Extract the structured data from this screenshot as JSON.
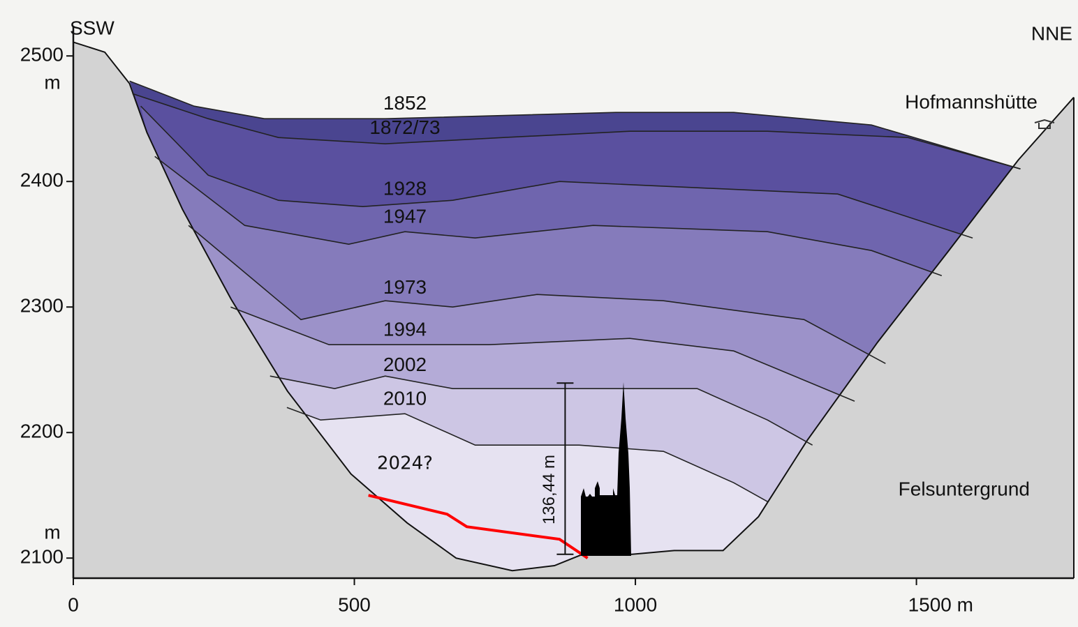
{
  "chart_data": {
    "type": "line",
    "left_label": "SSW",
    "right_label": "NNE",
    "hut_label": "Hofmannshütte",
    "rock_label": "Felsuntergrund",
    "y_unit_top": "m",
    "y_unit_bottom": "m",
    "xlim": [
      0,
      1780
    ],
    "ylim": [
      2084,
      2524
    ],
    "xticks": [
      0,
      500,
      1000,
      {
        "value": 1500,
        "label": "1500 m"
      }
    ],
    "yticks": [
      2100,
      2200,
      2300,
      2400,
      2500
    ],
    "bedrock": {
      "x": [
        0,
        56,
        100,
        131,
        194,
        281,
        381,
        494,
        594,
        681,
        781,
        856,
        906,
        994,
        1069,
        1156,
        1219,
        1306,
        1431,
        1556,
        1681,
        1780
      ],
      "values": [
        2511,
        2503,
        2478,
        2439,
        2378,
        2306,
        2233,
        2167,
        2128,
        2100,
        2090,
        2094,
        2103,
        2103,
        2106,
        2106,
        2133,
        2194,
        2272,
        2344,
        2417,
        2467
      ]
    },
    "series": [
      {
        "name": "1852",
        "color": "#4a4590",
        "x": [
          100,
          215,
          340,
          555,
          965,
          1175,
          1420,
          1685
        ],
        "values": [
          2480,
          2460,
          2450,
          2450,
          2455,
          2455,
          2445,
          2410
        ]
      },
      {
        "name": "1872/73",
        "color": "#5a509f",
        "x": [
          105,
          240,
          365,
          555,
          765,
          990,
          1235,
          1485,
          1685
        ],
        "values": [
          2470,
          2450,
          2435,
          2430,
          2435,
          2440,
          2440,
          2435,
          2410
        ]
      },
      {
        "name": "1928",
        "color": "#6f65ae",
        "x": [
          120,
          240,
          365,
          515,
          675,
          865,
          1110,
          1360,
          1600
        ],
        "values": [
          2460,
          2405,
          2385,
          2380,
          2385,
          2400,
          2395,
          2390,
          2355
        ]
      },
      {
        "name": "1947",
        "color": "#857bbb",
        "x": [
          145,
          305,
          490,
          590,
          715,
          925,
          1235,
          1420,
          1545
        ],
        "values": [
          2420,
          2365,
          2350,
          2360,
          2355,
          2365,
          2360,
          2345,
          2325
        ]
      },
      {
        "name": "1973",
        "color": "#9c92c9",
        "x": [
          205,
          405,
          555,
          675,
          825,
          1050,
          1300,
          1445
        ],
        "values": [
          2365,
          2290,
          2305,
          2300,
          2310,
          2305,
          2290,
          2255
        ]
      },
      {
        "name": "1994",
        "color": "#b4abd7",
        "x": [
          280,
          455,
          590,
          740,
          990,
          1175,
          1390
        ],
        "values": [
          2300,
          2270,
          2270,
          2270,
          2275,
          2265,
          2225
        ]
      },
      {
        "name": "2002",
        "color": "#cdc6e4",
        "x": [
          350,
          465,
          555,
          675,
          865,
          1110,
          1235,
          1315
        ],
        "values": [
          2245,
          2235,
          2245,
          2235,
          2235,
          2235,
          2210,
          2190
        ]
      },
      {
        "name": "2010",
        "color": "#e6e2f1",
        "x": [
          380,
          440,
          590,
          715,
          900,
          1050,
          1175,
          1235
        ],
        "values": [
          2220,
          2210,
          2215,
          2190,
          2190,
          2185,
          2160,
          2145
        ]
      },
      {
        "name": "2024?",
        "color": "#ff0000",
        "x": [
          525,
          665,
          700,
          865,
          915
        ],
        "values": [
          2150,
          2135,
          2125,
          2115,
          2100
        ]
      }
    ],
    "height_marker": {
      "label": "136,44 m",
      "value": 136.44,
      "base": 2103,
      "x": 875
    }
  }
}
